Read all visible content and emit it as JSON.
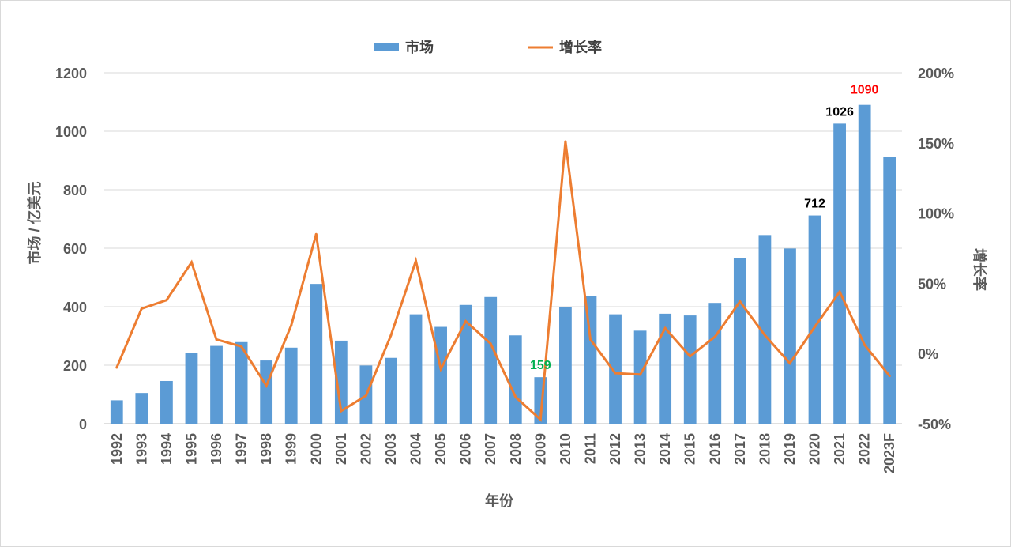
{
  "chart_data": {
    "type": "bar",
    "categories": [
      "1992",
      "1993",
      "1994",
      "1995",
      "1996",
      "1997",
      "1998",
      "1999",
      "2000",
      "2001",
      "2002",
      "2003",
      "2004",
      "2005",
      "2006",
      "2007",
      "2008",
      "2009",
      "2010",
      "2011",
      "2012",
      "2013",
      "2014",
      "2015",
      "2016",
      "2017",
      "2018",
      "2019",
      "2020",
      "2021",
      "2022",
      "2023F"
    ],
    "series": [
      {
        "name": "市场",
        "type": "bar",
        "axis": "left",
        "color": "#5B9BD5",
        "values": [
          80,
          105,
          146,
          241,
          266,
          279,
          216,
          260,
          478,
          284,
          199,
          225,
          374,
          331,
          406,
          433,
          302,
          159,
          399,
          437,
          374,
          318,
          376,
          370,
          413,
          566,
          645,
          599,
          712,
          1026,
          1090,
          912
        ]
      },
      {
        "name": "增长率",
        "type": "line",
        "axis": "right",
        "color": "#ED7D31",
        "values": [
          -10,
          32,
          38,
          65,
          10,
          5,
          -23,
          20,
          85,
          -41,
          -30,
          13,
          66,
          -11,
          23,
          7,
          -31,
          -47,
          151,
          10,
          -14,
          -15,
          18,
          -2,
          12,
          37,
          13,
          -7,
          19,
          44,
          6,
          -16
        ]
      }
    ],
    "data_labels": [
      {
        "category": "2009",
        "text": "159",
        "color": "#00B050"
      },
      {
        "category": "2020",
        "text": "712",
        "color": "#000000"
      },
      {
        "category": "2021",
        "text": "1026",
        "color": "#000000"
      },
      {
        "category": "2022",
        "text": "1090",
        "color": "#FF0000"
      }
    ],
    "xlabel": "年份",
    "ylabel": "市场 / 亿美元",
    "y2label": "增长率",
    "ylim": [
      0,
      1200
    ],
    "yticks": [
      "0",
      "200",
      "400",
      "600",
      "800",
      "1000",
      "1200"
    ],
    "y2lim": [
      -50,
      200
    ],
    "y2ticks": [
      "-50%",
      "0%",
      "50%",
      "100%",
      "150%",
      "200%"
    ],
    "grid": true,
    "legend_position": "top-center"
  }
}
